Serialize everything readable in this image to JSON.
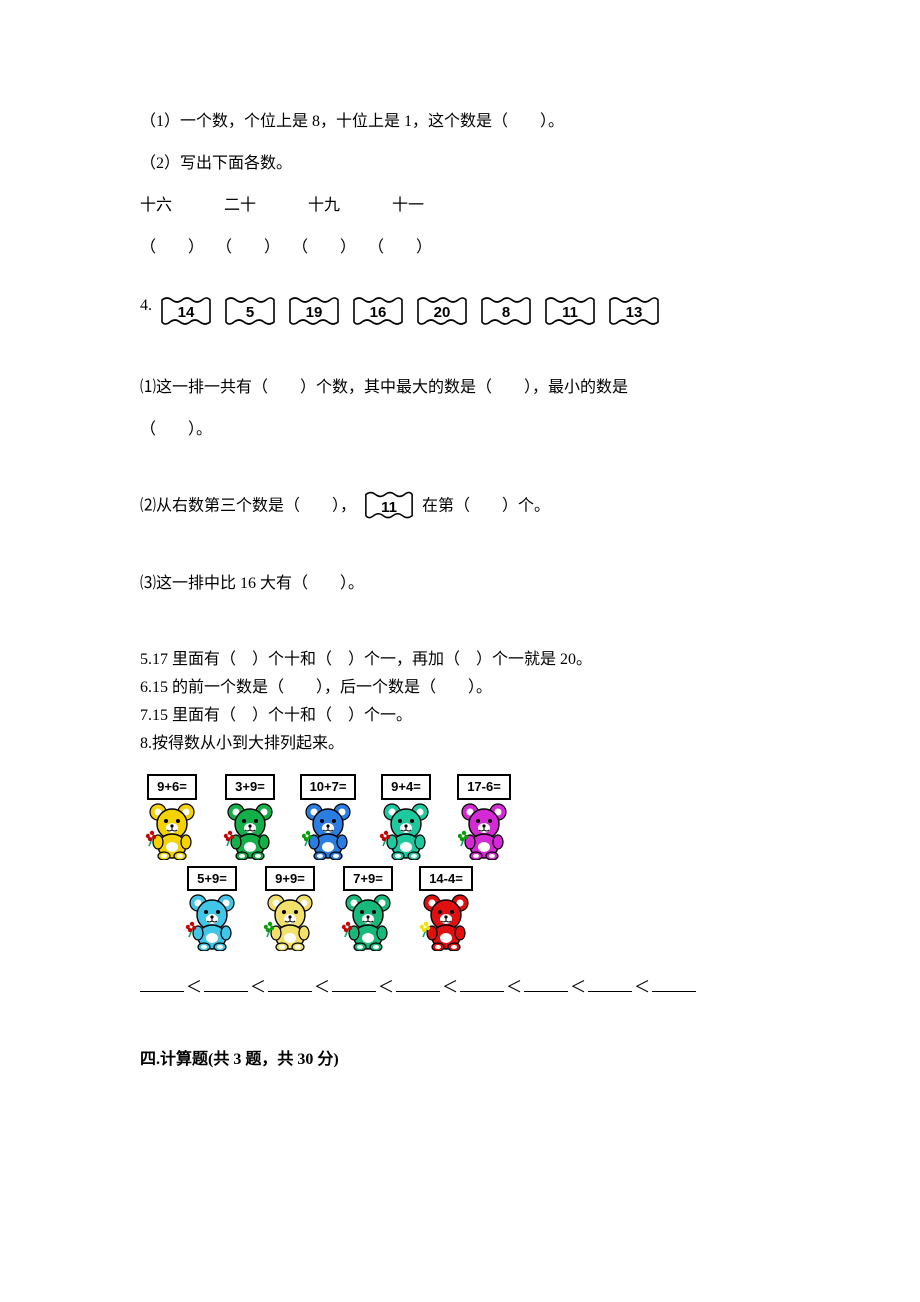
{
  "q1_text": "（1）一个数，个位上是 8，十位上是 1，这个数是（　　）。",
  "q2_text": "（2）写出下面各数。",
  "q2_words": [
    "十六",
    "二十",
    "十九",
    "十一"
  ],
  "q2_parens": [
    "（　　）",
    "（　　）",
    "（　　）",
    "（　　）"
  ],
  "q4_label": "4.",
  "q4_flags": [
    "14",
    "5",
    "19",
    "16",
    "20",
    "8",
    "11",
    "13"
  ],
  "q4_sub1": "⑴这一排一共有（　　）个数，其中最大的数是（　　），最小的数是",
  "q4_sub1b": "（　　）。",
  "q4_sub2_a": "⑵从右数第三个数是（　　），",
  "q4_sub2_flag": "11",
  "q4_sub2_b": "在第（　　）个。",
  "q4_sub3": "⑶这一排中比 16 大有（　　）。",
  "q5_text": "5.17 里面有（　）个十和（　）个一，再加（　）个一就是 20。",
  "q6_text": "6.15 的前一个数是（　　），后一个数是（　　）。",
  "q7_text": "7.15 里面有（　）个十和（　）个一。",
  "q8_text": "8.按得数从小到大排列起来。",
  "bears_row1": [
    {
      "label": "9+6=",
      "body": "#f5d300",
      "flower": "#c80000"
    },
    {
      "label": "3+9=",
      "body": "#13b04a",
      "flower": "#c80000"
    },
    {
      "label": "10+7=",
      "body": "#2a7de1",
      "flower": "#00a000"
    },
    {
      "label": "9+4=",
      "body": "#1fc9a0",
      "flower": "#c80000"
    },
    {
      "label": "17-6=",
      "body": "#d429d4",
      "flower": "#00a000"
    }
  ],
  "bears_row2": [
    {
      "label": "5+9=",
      "body": "#3fc6e8",
      "flower": "#c80000"
    },
    {
      "label": "9+9=",
      "body": "#f3e06a",
      "flower": "#00a000"
    },
    {
      "label": "7+9=",
      "body": "#17b97a",
      "flower": "#c80000"
    },
    {
      "label": "14-4=",
      "body": "#e01010",
      "flower": "#f3e000"
    }
  ],
  "lt_slots": 9,
  "section4": "四.计算题(共 3 题，共 30 分)"
}
